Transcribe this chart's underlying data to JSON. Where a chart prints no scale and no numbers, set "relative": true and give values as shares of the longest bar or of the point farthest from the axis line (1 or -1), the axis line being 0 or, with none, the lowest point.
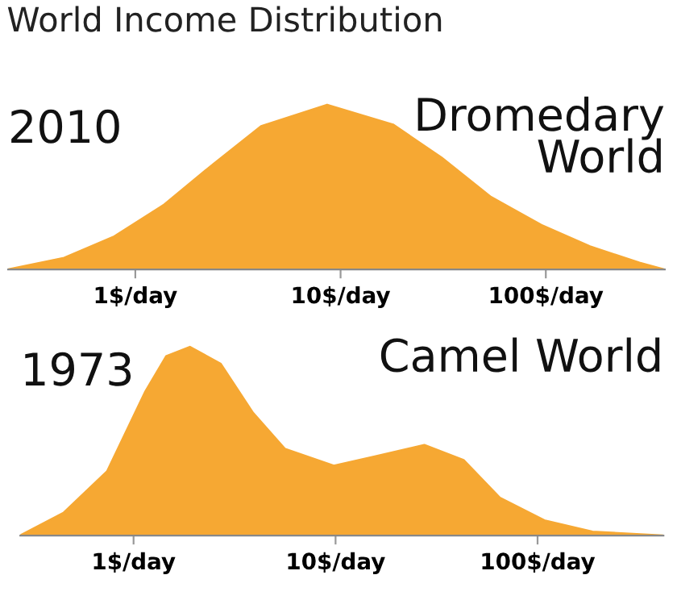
{
  "chart_data": [
    {
      "type": "area",
      "title": "World Income Distribution",
      "annotations": [
        "2010",
        "Dromedary\nWorld"
      ],
      "relative": true,
      "log": "x",
      "color": "#f6a833",
      "x": [
        0.24,
        0.45,
        0.79,
        1.37,
        2.4,
        4.1,
        8.6,
        18,
        31,
        54,
        95,
        164,
        286,
        377
      ],
      "values": [
        0,
        0.07,
        0.2,
        0.39,
        0.64,
        0.87,
        1.0,
        0.88,
        0.68,
        0.44,
        0.27,
        0.14,
        0.04,
        0
      ],
      "xlim": [
        0.24,
        380
      ],
      "xticks": [
        {
          "value": 1,
          "label": "1$/day"
        },
        {
          "value": 10,
          "label": "10$/day"
        },
        {
          "value": 100,
          "label": "100$/day"
        }
      ],
      "tick_labels": "x",
      "grid": false
    },
    {
      "type": "area",
      "annotations": [
        "1973",
        "Camel World"
      ],
      "relative": true,
      "log": "x",
      "color": "#f6a833",
      "x": [
        0.275,
        0.45,
        0.74,
        1.14,
        1.45,
        1.9,
        2.7,
        3.9,
        5.6,
        9.8,
        15.8,
        27.5,
        43,
        65,
        108,
        187,
        413
      ],
      "values": [
        0,
        0.12,
        0.34,
        0.76,
        0.95,
        1.0,
        0.91,
        0.65,
        0.46,
        0.37,
        0.42,
        0.48,
        0.4,
        0.2,
        0.08,
        0.02,
        0
      ],
      "xlim": [
        0.275,
        420
      ],
      "xticks": [
        {
          "value": 1,
          "label": "1$/day"
        },
        {
          "value": 10,
          "label": "10$/day"
        },
        {
          "value": 100,
          "label": "100$/day"
        }
      ],
      "tick_labels": "x",
      "grid": false
    }
  ]
}
